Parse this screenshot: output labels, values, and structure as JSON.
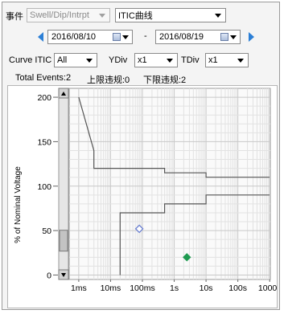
{
  "toolbar": {
    "event_label": "事件",
    "event_type": {
      "value": "Swell/Dip/Intrpt",
      "disabled": true
    },
    "curve_select": {
      "value": "ITIC曲线"
    }
  },
  "dates": {
    "start": "2016/08/10",
    "separator": "-",
    "end": "2016/08/19"
  },
  "options": {
    "curve_label": "Curve ITIC",
    "curve_value": "All",
    "ydiv_label": "YDiv",
    "ydiv_value": "x1",
    "tdiv_label": "TDiv",
    "tdiv_value": "x1"
  },
  "summary": {
    "total_events": "Total Events:2",
    "upper_violations": "上限违规:0",
    "lower_violations": "下限违规:2"
  },
  "chart_data": {
    "type": "scatter",
    "title": "",
    "ylabel": "% of Nominal Voltage",
    "xlabel": "",
    "x_scale": "log",
    "x_ticks": [
      "1ms",
      "10ms",
      "100ms",
      "1s",
      "10s",
      "100s",
      "1000s"
    ],
    "x_tick_values": [
      0.001,
      0.01,
      0.1,
      1,
      10,
      100,
      1000
    ],
    "y_ticks": [
      "0",
      "50",
      "100",
      "150",
      "200"
    ],
    "y_tick_values": [
      0,
      50,
      100,
      150,
      200
    ],
    "ylim": [
      -5,
      210
    ],
    "grid": true,
    "points": [
      {
        "x": 0.08,
        "y": 52,
        "marker": "diamond-open",
        "color": "#6a7fd0"
      },
      {
        "x": 2.5,
        "y": 20,
        "marker": "diamond-filled",
        "color": "#1e9a50"
      }
    ],
    "curves": [
      {
        "name": "upper",
        "color": "#555555",
        "x": [
          0.001,
          0.003,
          0.003,
          0.5,
          0.5,
          10,
          10,
          1000
        ],
        "y": [
          200,
          140,
          120,
          120,
          115,
          115,
          110,
          110
        ]
      },
      {
        "name": "lower",
        "color": "#555555",
        "x": [
          0.02,
          0.02,
          0.5,
          0.5,
          10,
          10,
          1000
        ],
        "y": [
          0,
          70,
          70,
          80,
          80,
          90,
          90
        ]
      }
    ],
    "scrollbar": {
      "position": 0.88
    }
  }
}
